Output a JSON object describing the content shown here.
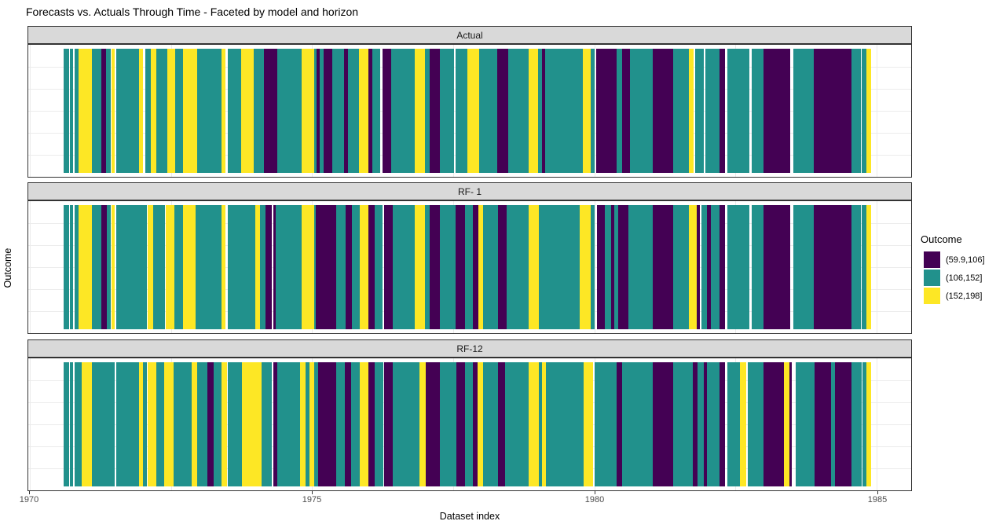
{
  "title": "Forecasts vs. Actuals Through Time - Faceted by model and horizon",
  "chart_data": {
    "type": "heatmap",
    "title": "Forecasts vs. Actuals Through Time - Faceted by model and horizon",
    "x_axis": {
      "title": "Dataset index",
      "domain": [
        1969.972,
        1985.611
      ],
      "ticks": [
        {
          "value": 1970,
          "label": "1970"
        },
        {
          "value": 1975,
          "label": "1975"
        },
        {
          "value": 1980,
          "label": "1980"
        },
        {
          "value": 1985,
          "label": "1985"
        }
      ],
      "minor_ticks": [
        1972.5,
        1977.5,
        1982.5
      ]
    },
    "y_axis": {
      "title": "Outcome",
      "ticks": []
    },
    "legend": {
      "title": "Outcome",
      "entries": [
        {
          "label": "(59.9,106]",
          "color": "#440154"
        },
        {
          "label": "(106,152]",
          "color": "#21918c"
        },
        {
          "label": "(152,198]",
          "color": "#fde725"
        }
      ]
    },
    "style": {
      "strip_bg": "#d9d9d9",
      "panel_border": "#333333",
      "grid": "#ebebeb",
      "axis_text": "#4d4d4d"
    },
    "facets": [
      {
        "label": "Actual",
        "segments": [
          [
            1970.6,
            1970.69,
            1
          ],
          [
            1970.71,
            1970.76,
            1
          ],
          [
            1970.79,
            1970.86,
            1
          ],
          [
            1970.86,
            1971.1,
            2
          ],
          [
            1971.1,
            1971.26,
            1
          ],
          [
            1971.26,
            1971.35,
            0
          ],
          [
            1971.35,
            1971.44,
            1
          ],
          [
            1971.44,
            1971.5,
            2
          ],
          [
            1971.53,
            1971.93,
            1
          ],
          [
            1971.93,
            1972.01,
            2
          ],
          [
            1972.04,
            1972.14,
            1
          ],
          [
            1972.14,
            1972.24,
            2
          ],
          [
            1972.24,
            1972.44,
            1
          ],
          [
            1972.44,
            1972.57,
            2
          ],
          [
            1972.57,
            1972.71,
            1
          ],
          [
            1972.71,
            1972.96,
            2
          ],
          [
            1972.96,
            1973.39,
            1
          ],
          [
            1973.39,
            1973.47,
            2
          ],
          [
            1973.5,
            1973.74,
            1
          ],
          [
            1973.74,
            1973.96,
            2
          ],
          [
            1973.96,
            1974.14,
            1
          ],
          [
            1974.14,
            1974.31,
            0
          ],
          [
            1974.32,
            1974.38,
            0
          ],
          [
            1974.38,
            1974.81,
            1
          ],
          [
            1974.81,
            1975.03,
            2
          ],
          [
            1975.03,
            1975.08,
            1
          ],
          [
            1975.08,
            1975.14,
            0
          ],
          [
            1975.14,
            1975.21,
            1
          ],
          [
            1975.21,
            1975.35,
            0
          ],
          [
            1975.35,
            1975.57,
            1
          ],
          [
            1975.57,
            1975.64,
            0
          ],
          [
            1975.64,
            1975.83,
            1
          ],
          [
            1975.83,
            1975.99,
            2
          ],
          [
            1975.99,
            1976.07,
            0
          ],
          [
            1976.07,
            1976.21,
            1
          ],
          [
            1976.25,
            1976.4,
            0
          ],
          [
            1976.4,
            1976.82,
            1
          ],
          [
            1976.82,
            1977.0,
            2
          ],
          [
            1977.0,
            1977.08,
            1
          ],
          [
            1977.08,
            1977.26,
            0
          ],
          [
            1977.26,
            1977.51,
            1
          ],
          [
            1977.54,
            1977.75,
            1
          ],
          [
            1977.75,
            1977.96,
            2
          ],
          [
            1977.96,
            1978.28,
            1
          ],
          [
            1978.28,
            1978.47,
            0
          ],
          [
            1978.47,
            1978.83,
            1
          ],
          [
            1978.83,
            1979.0,
            2
          ],
          [
            1979.0,
            1979.07,
            1
          ],
          [
            1979.07,
            1979.13,
            0
          ],
          [
            1979.13,
            1979.79,
            1
          ],
          [
            1979.79,
            1979.94,
            2
          ],
          [
            1979.94,
            1980.01,
            1
          ],
          [
            1980.03,
            1980.39,
            0
          ],
          [
            1980.39,
            1980.49,
            1
          ],
          [
            1980.49,
            1980.63,
            0
          ],
          [
            1980.63,
            1981.04,
            1
          ],
          [
            1981.04,
            1981.39,
            0
          ],
          [
            1981.39,
            1981.68,
            1
          ],
          [
            1981.68,
            1981.76,
            2
          ],
          [
            1981.79,
            1981.94,
            1
          ],
          [
            1981.96,
            1982.22,
            1
          ],
          [
            1982.22,
            1982.31,
            0
          ],
          [
            1982.35,
            1982.75,
            1
          ],
          [
            1982.78,
            1983.0,
            1
          ],
          [
            1983.0,
            1983.47,
            0
          ],
          [
            1983.53,
            1983.89,
            1
          ],
          [
            1983.89,
            1984.56,
            0
          ],
          [
            1984.56,
            1984.72,
            1
          ],
          [
            1984.74,
            1984.82,
            1
          ],
          [
            1984.82,
            1984.9,
            2
          ]
        ]
      },
      {
        "label": "RF- 1",
        "segments": [
          [
            1970.6,
            1970.69,
            1
          ],
          [
            1970.71,
            1970.76,
            1
          ],
          [
            1970.79,
            1970.86,
            1
          ],
          [
            1970.86,
            1971.1,
            2
          ],
          [
            1971.1,
            1971.26,
            1
          ],
          [
            1971.26,
            1971.36,
            0
          ],
          [
            1971.36,
            1971.44,
            1
          ],
          [
            1971.44,
            1971.5,
            2
          ],
          [
            1971.53,
            1972.08,
            1
          ],
          [
            1972.08,
            1972.18,
            2
          ],
          [
            1972.18,
            1972.4,
            1
          ],
          [
            1972.4,
            1972.56,
            2
          ],
          [
            1972.56,
            1972.71,
            1
          ],
          [
            1972.71,
            1972.93,
            2
          ],
          [
            1972.93,
            1973.4,
            1
          ],
          [
            1973.4,
            1973.47,
            2
          ],
          [
            1973.5,
            1974.0,
            1
          ],
          [
            1974.0,
            1974.08,
            2
          ],
          [
            1974.08,
            1974.18,
            1
          ],
          [
            1974.18,
            1974.28,
            0
          ],
          [
            1974.32,
            1974.36,
            0
          ],
          [
            1974.36,
            1974.81,
            1
          ],
          [
            1974.81,
            1975.03,
            2
          ],
          [
            1975.03,
            1975.07,
            1
          ],
          [
            1975.07,
            1975.43,
            0
          ],
          [
            1975.43,
            1975.6,
            1
          ],
          [
            1975.6,
            1975.71,
            0
          ],
          [
            1975.71,
            1975.85,
            1
          ],
          [
            1975.85,
            1976.0,
            2
          ],
          [
            1976.0,
            1976.11,
            0
          ],
          [
            1976.11,
            1976.25,
            1
          ],
          [
            1976.28,
            1976.43,
            0
          ],
          [
            1976.43,
            1976.82,
            1
          ],
          [
            1976.82,
            1977.0,
            2
          ],
          [
            1977.0,
            1977.08,
            1
          ],
          [
            1977.08,
            1977.26,
            0
          ],
          [
            1977.26,
            1977.54,
            1
          ],
          [
            1977.54,
            1977.71,
            0
          ],
          [
            1977.71,
            1977.85,
            1
          ],
          [
            1977.85,
            1977.94,
            0
          ],
          [
            1977.94,
            1978.03,
            2
          ],
          [
            1978.03,
            1978.29,
            1
          ],
          [
            1978.29,
            1978.44,
            0
          ],
          [
            1978.44,
            1978.83,
            1
          ],
          [
            1978.83,
            1979.01,
            2
          ],
          [
            1979.01,
            1979.74,
            1
          ],
          [
            1979.74,
            1979.94,
            2
          ],
          [
            1979.94,
            1980.01,
            1
          ],
          [
            1980.04,
            1980.19,
            0
          ],
          [
            1980.19,
            1980.29,
            1
          ],
          [
            1980.29,
            1980.35,
            0
          ],
          [
            1980.35,
            1980.42,
            1
          ],
          [
            1980.42,
            1980.6,
            0
          ],
          [
            1980.6,
            1981.04,
            1
          ],
          [
            1981.04,
            1981.39,
            0
          ],
          [
            1981.39,
            1981.67,
            1
          ],
          [
            1981.67,
            1981.81,
            2
          ],
          [
            1981.81,
            1981.87,
            0
          ],
          [
            1981.89,
            1981.99,
            1
          ],
          [
            1981.99,
            1982.06,
            0
          ],
          [
            1982.06,
            1982.22,
            1
          ],
          [
            1982.22,
            1982.31,
            0
          ],
          [
            1982.35,
            1982.75,
            1
          ],
          [
            1982.78,
            1983.0,
            1
          ],
          [
            1983.0,
            1983.47,
            0
          ],
          [
            1983.53,
            1983.89,
            1
          ],
          [
            1983.89,
            1984.56,
            0
          ],
          [
            1984.56,
            1984.72,
            1
          ],
          [
            1984.74,
            1984.82,
            1
          ],
          [
            1984.82,
            1984.9,
            2
          ]
        ]
      },
      {
        "label": "RF-12",
        "segments": [
          [
            1970.6,
            1970.69,
            1
          ],
          [
            1970.71,
            1970.76,
            1
          ],
          [
            1970.79,
            1970.92,
            1
          ],
          [
            1970.92,
            1971.1,
            2
          ],
          [
            1971.1,
            1971.5,
            1
          ],
          [
            1971.53,
            1971.94,
            1
          ],
          [
            1971.94,
            1972.01,
            2
          ],
          [
            1972.01,
            1972.08,
            1
          ],
          [
            1972.08,
            1972.24,
            2
          ],
          [
            1972.24,
            1972.38,
            1
          ],
          [
            1972.38,
            1972.54,
            2
          ],
          [
            1972.54,
            1972.86,
            1
          ],
          [
            1972.86,
            1972.96,
            2
          ],
          [
            1972.96,
            1973.15,
            1
          ],
          [
            1973.15,
            1973.26,
            0
          ],
          [
            1973.26,
            1973.4,
            1
          ],
          [
            1973.4,
            1973.49,
            2
          ],
          [
            1973.5,
            1973.76,
            1
          ],
          [
            1973.76,
            1974.1,
            2
          ],
          [
            1974.1,
            1974.28,
            1
          ],
          [
            1974.32,
            1974.38,
            0
          ],
          [
            1974.38,
            1974.79,
            1
          ],
          [
            1974.79,
            1974.88,
            2
          ],
          [
            1974.88,
            1974.96,
            1
          ],
          [
            1974.96,
            1975.04,
            2
          ],
          [
            1975.04,
            1975.1,
            1
          ],
          [
            1975.1,
            1975.43,
            0
          ],
          [
            1975.43,
            1975.58,
            1
          ],
          [
            1975.58,
            1975.69,
            0
          ],
          [
            1975.69,
            1975.85,
            1
          ],
          [
            1975.85,
            1976.0,
            2
          ],
          [
            1976.0,
            1976.11,
            0
          ],
          [
            1976.11,
            1976.26,
            1
          ],
          [
            1976.28,
            1976.43,
            0
          ],
          [
            1976.43,
            1976.9,
            1
          ],
          [
            1976.9,
            1977.01,
            2
          ],
          [
            1977.01,
            1977.26,
            0
          ],
          [
            1977.26,
            1977.56,
            1
          ],
          [
            1977.56,
            1977.71,
            0
          ],
          [
            1977.71,
            1977.85,
            1
          ],
          [
            1977.85,
            1977.93,
            0
          ],
          [
            1977.93,
            1978.03,
            2
          ],
          [
            1978.03,
            1978.29,
            1
          ],
          [
            1978.29,
            1978.42,
            0
          ],
          [
            1978.42,
            1978.83,
            1
          ],
          [
            1978.83,
            1979.01,
            2
          ],
          [
            1979.01,
            1979.07,
            1
          ],
          [
            1979.07,
            1979.14,
            2
          ],
          [
            1979.14,
            1979.81,
            1
          ],
          [
            1979.81,
            1979.97,
            2
          ],
          [
            1980.01,
            1980.39,
            1
          ],
          [
            1980.39,
            1980.49,
            0
          ],
          [
            1980.49,
            1981.03,
            1
          ],
          [
            1981.03,
            1981.4,
            0
          ],
          [
            1981.4,
            1981.74,
            1
          ],
          [
            1981.74,
            1981.82,
            0
          ],
          [
            1981.83,
            1981.94,
            1
          ],
          [
            1981.94,
            1982.0,
            0
          ],
          [
            1982.0,
            1982.22,
            1
          ],
          [
            1982.22,
            1982.31,
            0
          ],
          [
            1982.35,
            1982.58,
            1
          ],
          [
            1982.58,
            1982.69,
            2
          ],
          [
            1982.72,
            1983.0,
            1
          ],
          [
            1983.0,
            1983.36,
            0
          ],
          [
            1983.36,
            1983.46,
            2
          ],
          [
            1983.46,
            1983.49,
            0
          ],
          [
            1983.57,
            1983.9,
            1
          ],
          [
            1983.9,
            1984.19,
            0
          ],
          [
            1984.19,
            1984.26,
            1
          ],
          [
            1984.26,
            1984.56,
            0
          ],
          [
            1984.56,
            1984.74,
            1
          ],
          [
            1984.75,
            1984.82,
            1
          ],
          [
            1984.82,
            1984.9,
            2
          ]
        ]
      }
    ]
  }
}
